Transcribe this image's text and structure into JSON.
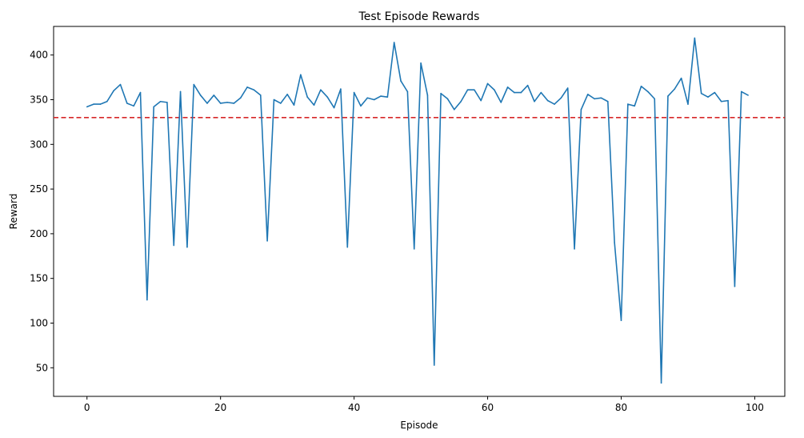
{
  "chart_data": {
    "type": "line",
    "title": "Test Episode Rewards",
    "xlabel": "Episode",
    "ylabel": "Reward",
    "xlim": [
      -5,
      104.5
    ],
    "ylim": [
      18,
      432
    ],
    "xticks": [
      0,
      20,
      40,
      60,
      80,
      100
    ],
    "yticks": [
      50,
      100,
      150,
      200,
      250,
      300,
      350,
      400
    ],
    "grid": false,
    "colors": {
      "line": "#1f77b4",
      "reference": "#d62728"
    },
    "reference_line": {
      "y": 330,
      "style": "dashed"
    },
    "series": [
      {
        "x": [
          0,
          1,
          2,
          3,
          4,
          5,
          6,
          7,
          8,
          9,
          10,
          11,
          12,
          13,
          14,
          15,
          16,
          17,
          18,
          19,
          20,
          21,
          22,
          23,
          24,
          25,
          26,
          27,
          28,
          29,
          30,
          31,
          32,
          33,
          34,
          35,
          36,
          37,
          38,
          39,
          40,
          41,
          42,
          43,
          44,
          45,
          46,
          47,
          48,
          49,
          50,
          51,
          52,
          53,
          54,
          55,
          56,
          57,
          58,
          59,
          60,
          61,
          62,
          63,
          64,
          65,
          66,
          67,
          68,
          69,
          70,
          71,
          72,
          73,
          74,
          75,
          76,
          77,
          78,
          79,
          80,
          81,
          82,
          83,
          84,
          85,
          86,
          87,
          88,
          89,
          90,
          91,
          92,
          93,
          94,
          95,
          96,
          97,
          98,
          99
        ],
        "y": [
          342,
          345,
          345,
          348,
          360,
          367,
          346,
          343,
          358,
          126,
          342,
          348,
          347,
          187,
          359,
          185,
          367,
          355,
          346,
          355,
          346,
          347,
          346,
          352,
          364,
          361,
          355,
          192,
          350,
          346,
          356,
          344,
          378,
          353,
          344,
          361,
          353,
          341,
          362,
          185,
          358,
          343,
          352,
          350,
          354,
          353,
          414,
          371,
          359,
          183,
          391,
          355,
          53,
          357,
          351,
          339,
          348,
          361,
          361,
          349,
          368,
          361,
          347,
          364,
          358,
          358,
          366,
          348,
          358,
          349,
          345,
          352,
          363,
          183,
          339,
          356,
          351,
          352,
          348,
          190,
          103,
          345,
          343,
          365,
          359,
          351,
          33,
          354,
          362,
          374,
          345,
          419,
          357,
          353,
          358,
          348,
          349,
          141,
          359,
          355
        ]
      }
    ]
  }
}
